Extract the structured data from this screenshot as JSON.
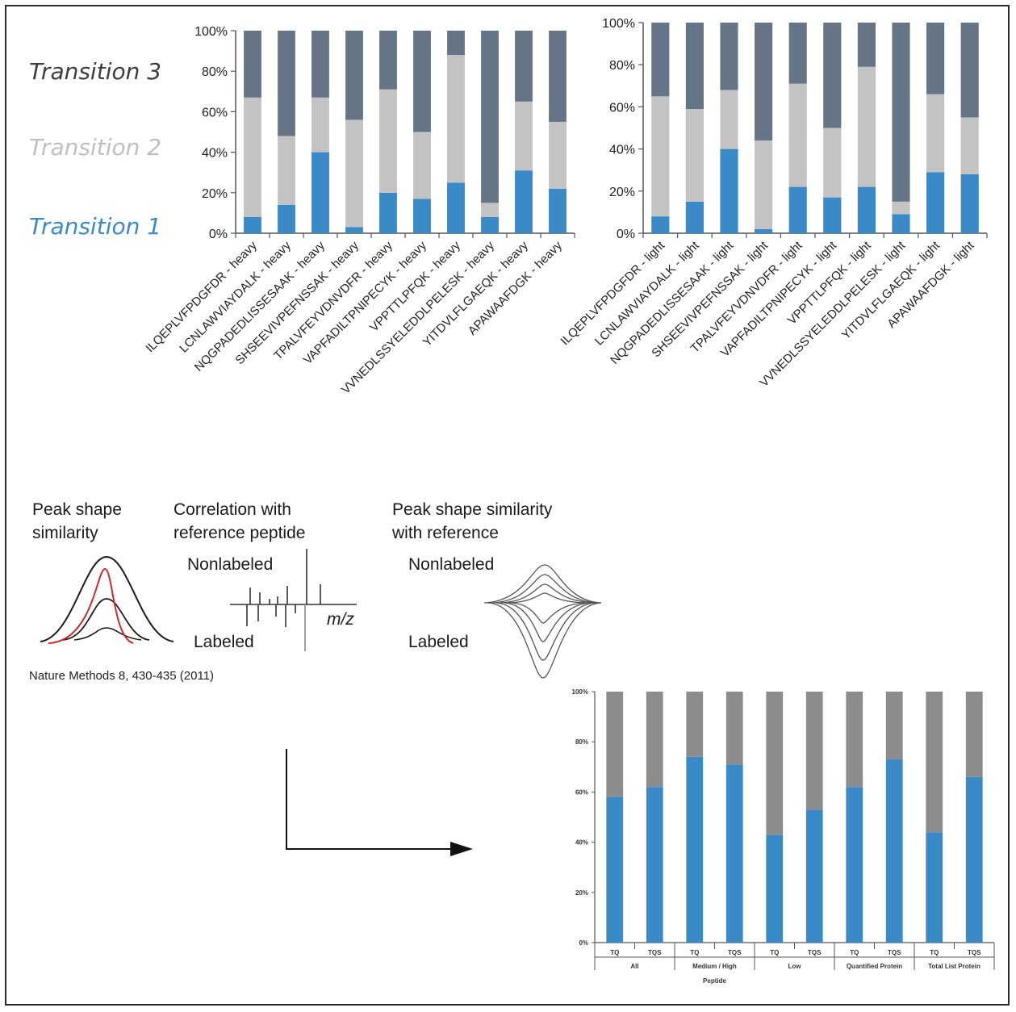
{
  "legend": {
    "t3": "Transition 3",
    "t2": "Transition 2",
    "t1": "Transition 1"
  },
  "colors": {
    "t1": "#3a8ac8",
    "t2": "#c3c3c3",
    "t3": "#667585",
    "tq_blue": "#3a8ac8",
    "tq_gray": "#8c8c8c",
    "red_curve": "#cc2a2a"
  },
  "chart_data": [
    {
      "type": "bar",
      "stacked": true,
      "categories": [
        "ILQEPLVFPDGFDR - heavy",
        "LCNLAWVIAYDALK - heavy",
        "NQGPADEDLISSESAAK - heavy",
        "SHSEEVIVPEFNSSAK - heavy",
        "TPALVFEYVDNVDFR - heavy",
        "VAPFADILTPNIPECYK - heavy",
        "VPPTTLPFQK - heavy",
        "VVNEDLSSYELEDDLPELESK - heavy",
        "YITDVLFLGAEQK - heavy",
        "APAWAAFDGK - heavy"
      ],
      "series": [
        {
          "name": "Transition 1",
          "values": [
            8,
            14,
            40,
            3,
            20,
            17,
            25,
            8,
            31,
            22
          ]
        },
        {
          "name": "Transition 2",
          "values": [
            59,
            34,
            27,
            53,
            51,
            33,
            63,
            7,
            34,
            33
          ]
        },
        {
          "name": "Transition 3",
          "values": [
            33,
            52,
            33,
            44,
            29,
            50,
            12,
            85,
            35,
            45
          ]
        }
      ],
      "yticks": [
        "0%",
        "20%",
        "40%",
        "60%",
        "80%",
        "100%"
      ],
      "ylim": [
        0,
        100
      ]
    },
    {
      "type": "bar",
      "stacked": true,
      "categories": [
        "ILQEPLVFPDGFDR - light",
        "LCNLAWVIAYDALK - light",
        "NQGPADEDLISSESAAK - light",
        "SHSEEVIVPEFNSSAK - light",
        "TPALVFEYVDNVDFR - light",
        "VAPFADILTPNIPECYK - light",
        "VPPTTLPFQK - light",
        "VVNEDLSSYELEDDLPELESK - light",
        "YITDVLFLGAEQK - light",
        "APAWAAFDGK - light"
      ],
      "series": [
        {
          "name": "Transition 1",
          "values": [
            8,
            15,
            40,
            2,
            22,
            17,
            22,
            9,
            29,
            28
          ]
        },
        {
          "name": "Transition 2",
          "values": [
            57,
            44,
            28,
            42,
            49,
            33,
            57,
            6,
            37,
            27
          ]
        },
        {
          "name": "Transition 3",
          "values": [
            35,
            41,
            32,
            56,
            29,
            50,
            21,
            85,
            34,
            45
          ]
        }
      ],
      "yticks": [
        "0%",
        "20%",
        "40%",
        "60%",
        "80%",
        "100%"
      ],
      "ylim": [
        0,
        100
      ]
    },
    {
      "type": "bar",
      "stacked": true,
      "categories": [
        "TQ",
        "TQS",
        "TQ",
        "TQS",
        "TQ",
        "TQS",
        "TQ",
        "TQS",
        "TQ",
        "TQS"
      ],
      "groups": [
        "All",
        "Medium / High",
        "Low",
        "Quantified Protein",
        "Total List Protein"
      ],
      "xlabel": "Peptide",
      "series": [
        {
          "values": [
            58,
            62,
            74,
            71,
            43,
            53,
            62,
            73,
            44,
            66
          ]
        },
        {
          "values": [
            42,
            38,
            26,
            29,
            57,
            47,
            38,
            27,
            56,
            34
          ]
        }
      ],
      "yticks": [
        "0%",
        "20%",
        "40%",
        "60%",
        "80%",
        "100%"
      ],
      "ylim": [
        0,
        100
      ]
    }
  ],
  "diagram": {
    "peak_shape_line1": "Peak shape",
    "peak_shape_line2": "similarity",
    "correlation_line1": "Correlation with",
    "correlation_line2": "reference peptide",
    "nonlabeled_1": "Nonlabeled",
    "labeled_1": "Labeled",
    "mz": "m/z",
    "similarity_line1": "Peak shape similarity",
    "similarity_line2": "with reference",
    "nonlabeled_2": "Nonlabeled",
    "labeled_2": "Labeled",
    "citation": "Nature Methods 8, 430-435 (2011)"
  }
}
